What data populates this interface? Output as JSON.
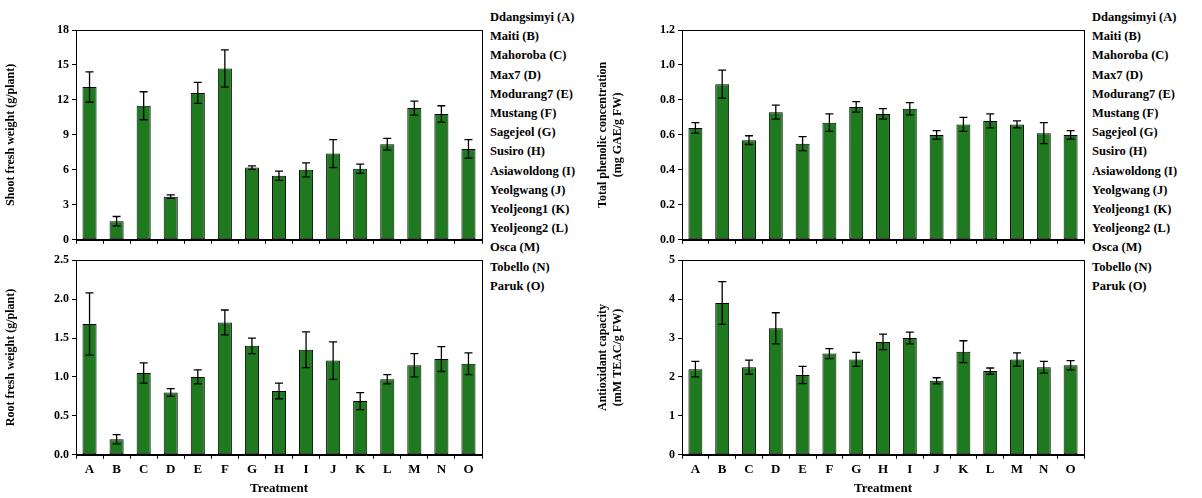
{
  "chart_data": [
    {
      "type": "bar",
      "y_label": "Shoot fresh weight (g/plant)",
      "categories": [
        "A",
        "B",
        "C",
        "D",
        "E",
        "F",
        "G",
        "H",
        "I",
        "J",
        "K",
        "L",
        "M",
        "N",
        "O"
      ],
      "values": [
        13.1,
        1.6,
        11.5,
        3.7,
        12.6,
        14.7,
        6.2,
        5.5,
        6.0,
        7.4,
        6.1,
        8.2,
        11.3,
        10.8,
        7.8
      ],
      "errors": [
        1.3,
        0.4,
        1.2,
        0.15,
        0.9,
        1.6,
        0.15,
        0.4,
        0.6,
        1.2,
        0.4,
        0.5,
        0.6,
        0.7,
        0.8
      ],
      "color": "#1f7a1f",
      "ylim": [
        0,
        18
      ],
      "yticks": [
        0,
        3,
        6,
        9,
        12,
        15,
        18
      ],
      "grid": false,
      "tick_labels": "y",
      "annotations": [
        "Ddangsimyi (A)",
        "Maiti (B)",
        "Mahoroba (C)",
        "Max7 (D)",
        "Modurang7 (E)",
        "Mustang (F)",
        "Sagejeol (G)",
        "Susiro (H)",
        "Asiawoldong (I)",
        "Yeolgwang (J)",
        "Yeoljeong1 (K)",
        "Yeoljeong2 (L)",
        "Osca (M)",
        "Tobello (N)",
        "Paruk (O)"
      ]
    },
    {
      "type": "bar",
      "y_label": "Root fresh weight (g/plant)",
      "x_label": "Treatment",
      "categories": [
        "A",
        "B",
        "C",
        "D",
        "E",
        "F",
        "G",
        "H",
        "I",
        "J",
        "K",
        "L",
        "M",
        "N",
        "O"
      ],
      "values": [
        1.68,
        0.2,
        1.05,
        0.8,
        1.0,
        1.7,
        1.4,
        0.82,
        1.35,
        1.21,
        0.69,
        0.97,
        1.15,
        1.23,
        1.17
      ],
      "errors": [
        0.4,
        0.06,
        0.13,
        0.05,
        0.09,
        0.16,
        0.1,
        0.1,
        0.23,
        0.24,
        0.11,
        0.06,
        0.15,
        0.16,
        0.14
      ],
      "color": "#1f7a1f",
      "ylim": [
        0,
        2.5
      ],
      "yticks": [
        {
          "value": 0,
          "label": "0.0"
        },
        0.5,
        {
          "value": 1,
          "label": "1.0"
        },
        1.5,
        {
          "value": 2,
          "label": "2.0"
        },
        2.5
      ],
      "grid": false
    },
    {
      "type": "bar",
      "y_label": [
        "Total phenolic concentration",
        "(mg GAE/g FW)"
      ],
      "categories": [
        "A",
        "B",
        "C",
        "D",
        "E",
        "F",
        "G",
        "H",
        "I",
        "J",
        "K",
        "L",
        "M",
        "N",
        "O"
      ],
      "values": [
        0.64,
        0.89,
        0.57,
        0.73,
        0.55,
        0.67,
        0.76,
        0.72,
        0.75,
        0.6,
        0.66,
        0.68,
        0.66,
        0.61,
        0.6
      ],
      "errors": [
        0.03,
        0.08,
        0.025,
        0.04,
        0.04,
        0.05,
        0.03,
        0.03,
        0.035,
        0.025,
        0.04,
        0.04,
        0.02,
        0.06,
        0.025
      ],
      "color": "#1f7a1f",
      "ylim": [
        0,
        1.2
      ],
      "yticks": [
        {
          "value": 0,
          "label": "0.0"
        },
        0.2,
        0.4,
        0.6,
        0.8,
        {
          "value": 1,
          "label": "1.0"
        },
        1.2
      ],
      "grid": false,
      "tick_labels": "y",
      "annotations": [
        "Ddangsimyi (A)",
        "Maiti (B)",
        "Mahoroba (C)",
        "Max7 (D)",
        "Modurang7 (E)",
        "Mustang (F)",
        "Sagejeol (G)",
        "Susiro (H)",
        "Asiawoldong (I)",
        "Yeolgwang (J)",
        "Yeoljeong1 (K)",
        "Yeoljeong2 (L)",
        "Osca (M)",
        "Tobello (N)",
        "Paruk (O)"
      ]
    },
    {
      "type": "bar",
      "y_label": [
        "Antioxidant capacity",
        "(mM TEAC/g FW)"
      ],
      "x_label": "Treatment",
      "categories": [
        "A",
        "B",
        "C",
        "D",
        "E",
        "F",
        "G",
        "H",
        "I",
        "J",
        "K",
        "L",
        "M",
        "N",
        "O"
      ],
      "values": [
        2.2,
        3.9,
        2.25,
        3.25,
        2.05,
        2.6,
        2.45,
        2.9,
        3.0,
        1.9,
        2.65,
        2.15,
        2.45,
        2.25,
        2.3
      ],
      "errors": [
        0.2,
        0.55,
        0.18,
        0.4,
        0.22,
        0.13,
        0.18,
        0.2,
        0.15,
        0.08,
        0.28,
        0.08,
        0.17,
        0.15,
        0.12
      ],
      "color": "#1f7a1f",
      "ylim": [
        0,
        5
      ],
      "yticks": [
        0,
        1,
        2,
        3,
        4,
        5
      ],
      "grid": false
    }
  ]
}
